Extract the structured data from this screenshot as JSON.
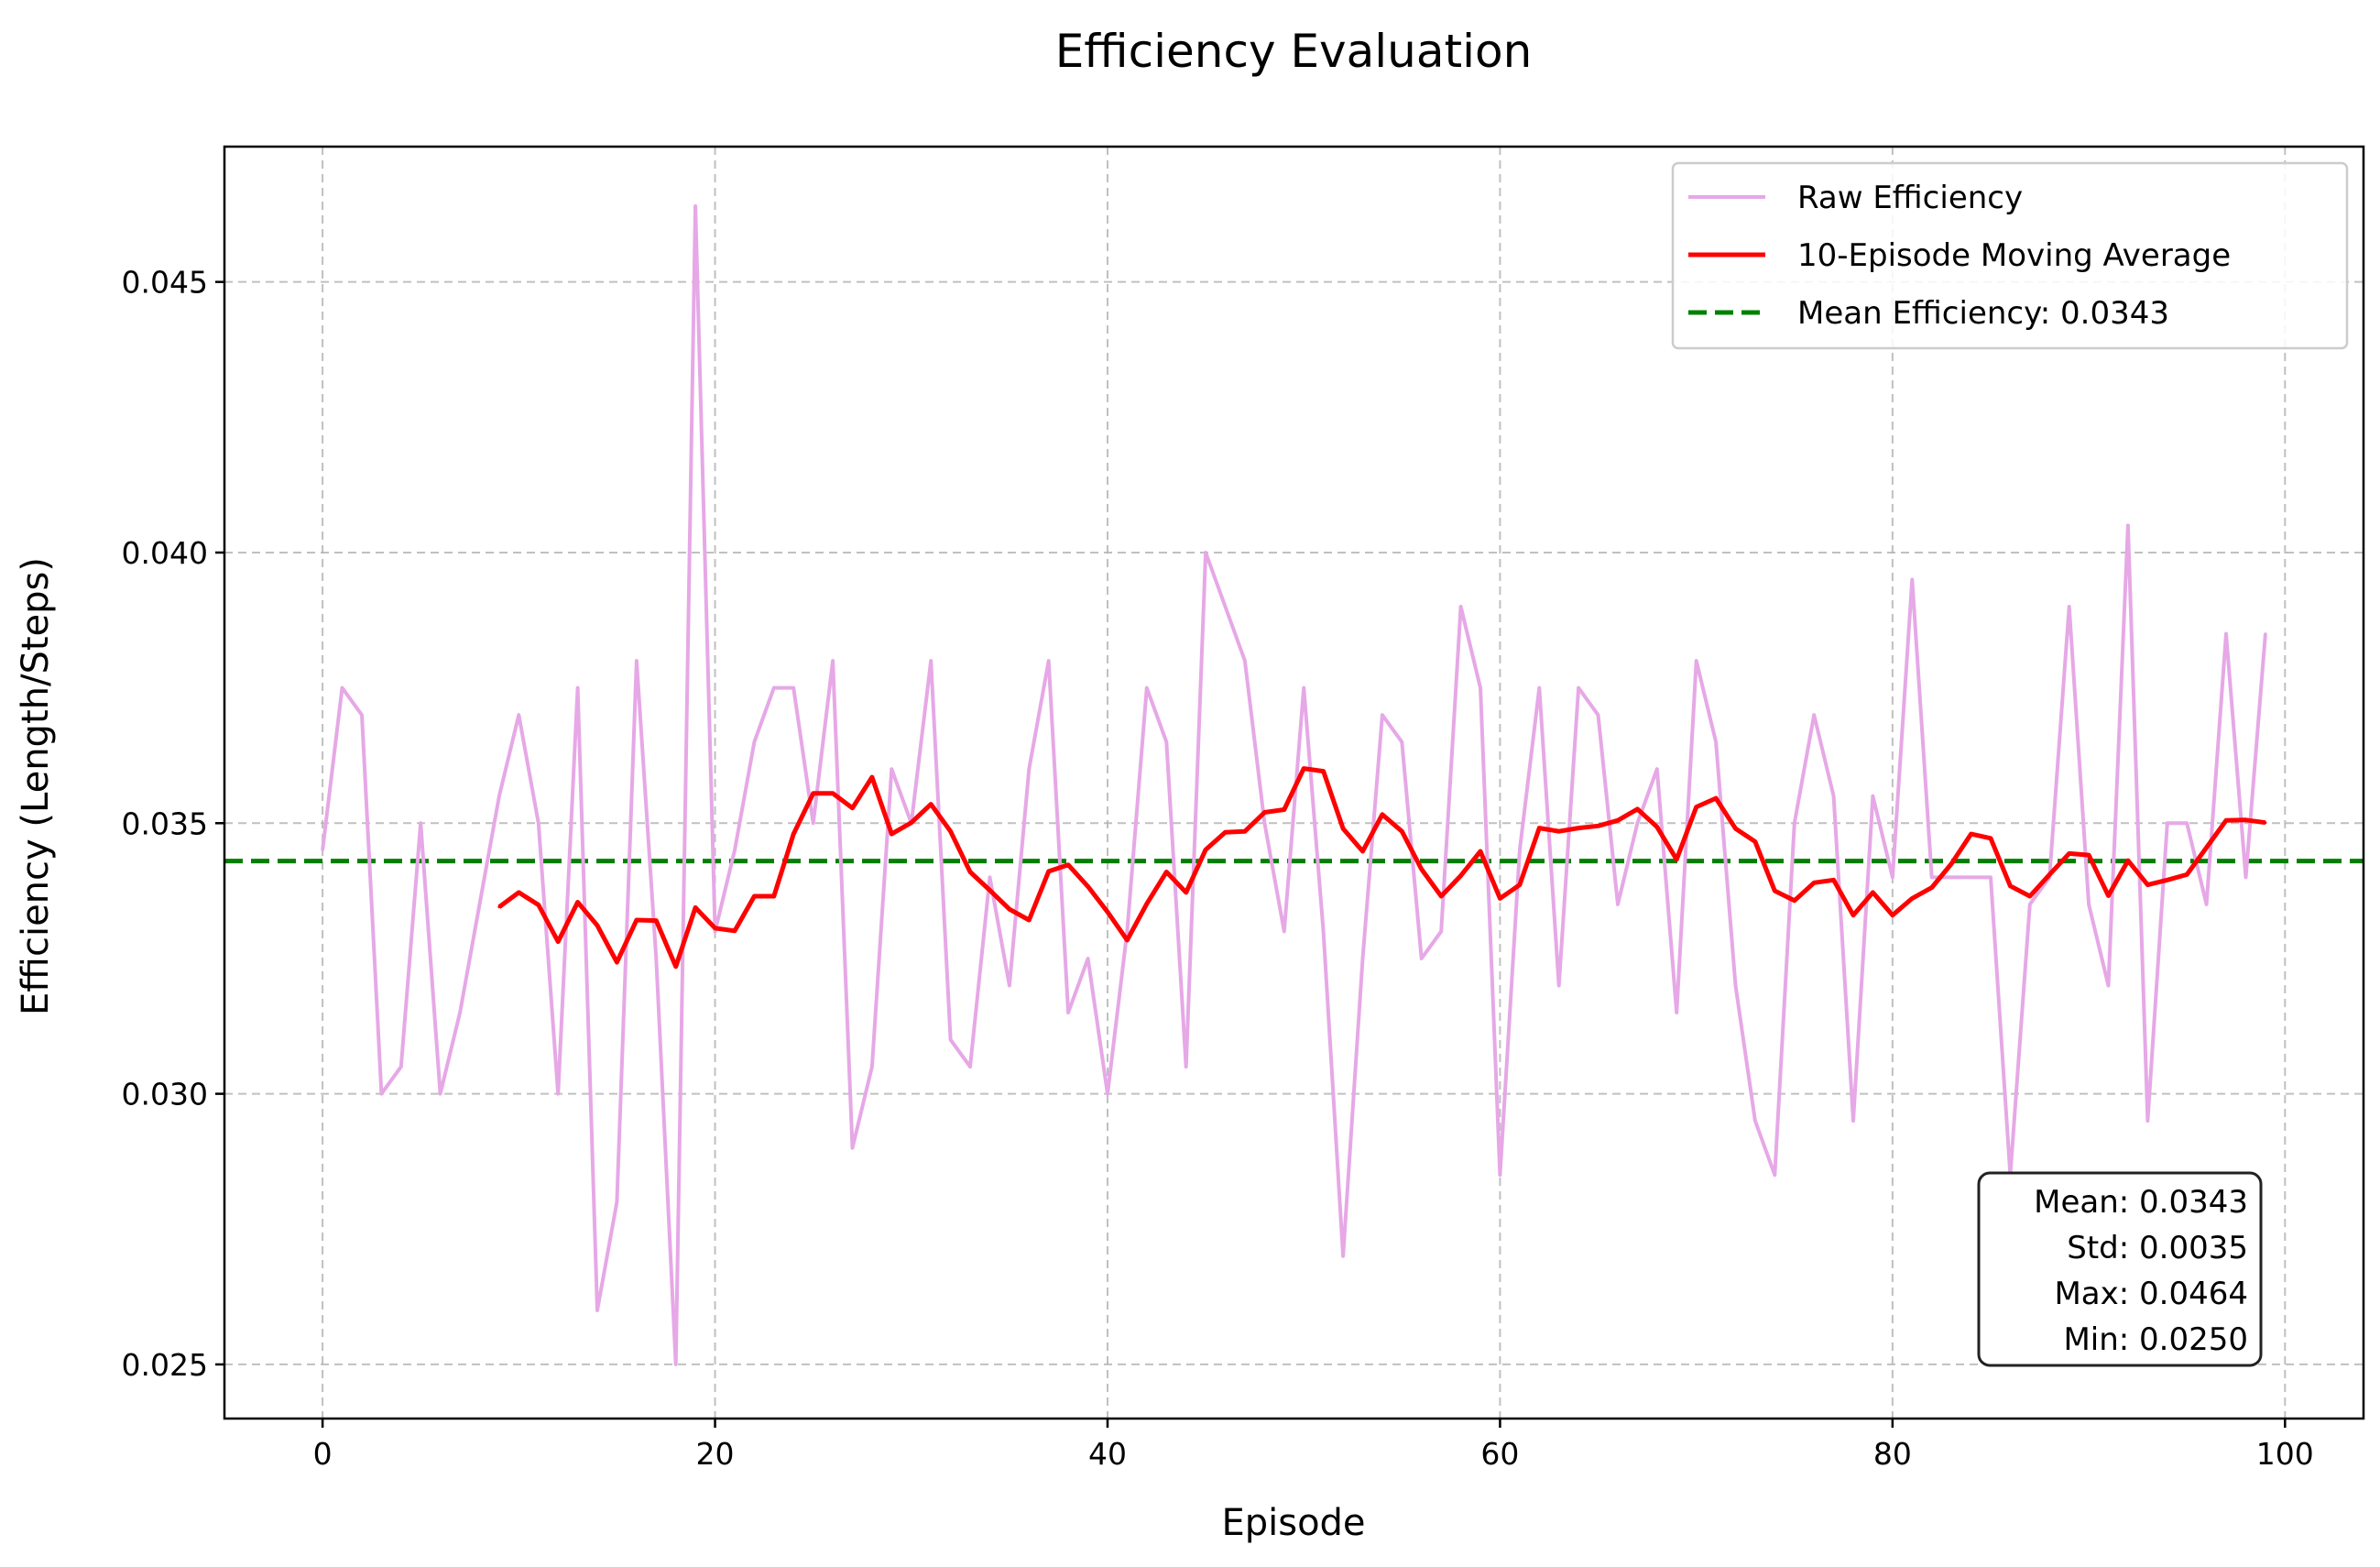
{
  "chart_data": {
    "type": "line",
    "title": "Efficiency Evaluation",
    "xlabel": "Episode",
    "ylabel": "Efficiency (Length/Steps)",
    "xlim": [
      -5,
      104
    ],
    "ylim": [
      0.024,
      0.0475
    ],
    "xticks": [
      0,
      20,
      40,
      60,
      80,
      100
    ],
    "yticks": [
      0.025,
      0.03,
      0.035,
      0.04,
      0.045
    ],
    "xtick_labels": [
      "0",
      "20",
      "40",
      "60",
      "80",
      "100"
    ],
    "ytick_labels": [
      "0.025",
      "0.030",
      "0.035",
      "0.040",
      "0.045"
    ],
    "grid": true,
    "legend_position": "top-right",
    "series": [
      {
        "name": "Raw Efficiency",
        "color": "#e6a8e6",
        "style": "solid",
        "x_start": 0,
        "values": [
          0.0345,
          0.0375,
          0.037,
          0.03,
          0.0305,
          0.035,
          0.03,
          0.0315,
          0.0335,
          0.0355,
          0.037,
          0.035,
          0.03,
          0.0375,
          0.026,
          0.028,
          0.038,
          0.0325,
          0.025,
          0.0464,
          0.033,
          0.0345,
          0.0365,
          0.0375,
          0.0375,
          0.035,
          0.038,
          0.029,
          0.0305,
          0.036,
          0.035,
          0.038,
          0.031,
          0.0305,
          0.034,
          0.032,
          0.036,
          0.038,
          0.0315,
          0.0325,
          0.03,
          0.033,
          0.0375,
          0.0365,
          0.0305,
          0.04,
          0.039,
          0.038,
          0.035,
          0.033,
          0.0375,
          0.033,
          0.027,
          0.0325,
          0.037,
          0.0365,
          0.0325,
          0.033,
          0.039,
          0.0375,
          0.0285,
          0.0345,
          0.0375,
          0.032,
          0.0375,
          0.037,
          0.0335,
          0.035,
          0.036,
          0.0315,
          0.038,
          0.0365,
          0.032,
          0.0295,
          0.0285,
          0.035,
          0.037,
          0.0355,
          0.0295,
          0.0355,
          0.034,
          0.0395,
          0.034,
          0.034,
          0.034,
          0.034,
          0.0285,
          0.0335,
          0.034,
          0.039,
          0.0335,
          0.032,
          0.0405,
          0.0295,
          0.035,
          0.035,
          0.0335,
          0.0385,
          0.034,
          0.0385
        ]
      },
      {
        "name": "10-Episode Moving Average",
        "color": "#ff0000",
        "style": "solid",
        "x_start": 9,
        "values": [
          0.03345,
          0.03372,
          0.03349,
          0.03281,
          0.03354,
          0.03311,
          0.03243,
          0.03321,
          0.0332,
          0.03235,
          0.03344,
          0.03306,
          0.03301,
          0.03365,
          0.03365,
          0.0348,
          0.03555,
          0.03555,
          0.03528,
          0.03585,
          0.0348,
          0.03501,
          0.03535,
          0.03485,
          0.0341,
          0.03376,
          0.03341,
          0.03321,
          0.03411,
          0.03423,
          0.03383,
          0.03336,
          0.03284,
          0.03351,
          0.0341,
          0.03372,
          0.03451,
          0.03483,
          0.03485,
          0.0352,
          0.03525,
          0.03601,
          0.03596,
          0.0349,
          0.03448,
          0.03516,
          0.03485,
          0.03415,
          0.03365,
          0.03403,
          0.03448,
          0.03361,
          0.03386,
          0.03491,
          0.03485,
          0.03491,
          0.03495,
          0.03505,
          0.03526,
          0.03493,
          0.03433,
          0.0353,
          0.03546,
          0.0349,
          0.03466,
          0.03375,
          0.03357,
          0.0339,
          0.03395,
          0.0333,
          0.03372,
          0.0333,
          0.03361,
          0.03381,
          0.03425,
          0.0348,
          0.03472,
          0.03384,
          0.03365,
          0.03405,
          0.03444,
          0.03441,
          0.03366,
          0.03431,
          0.03386,
          0.03395,
          0.03405,
          0.03455,
          0.03505,
          0.03506,
          0.03501
        ]
      },
      {
        "name": "Mean Efficiency: 0.0343",
        "color": "#008000",
        "style": "dashed",
        "y": 0.0343
      }
    ],
    "stats_box": {
      "lines": [
        "Mean: 0.0343",
        "Std: 0.0035",
        "Max: 0.0464",
        "Min: 0.0250"
      ]
    }
  }
}
